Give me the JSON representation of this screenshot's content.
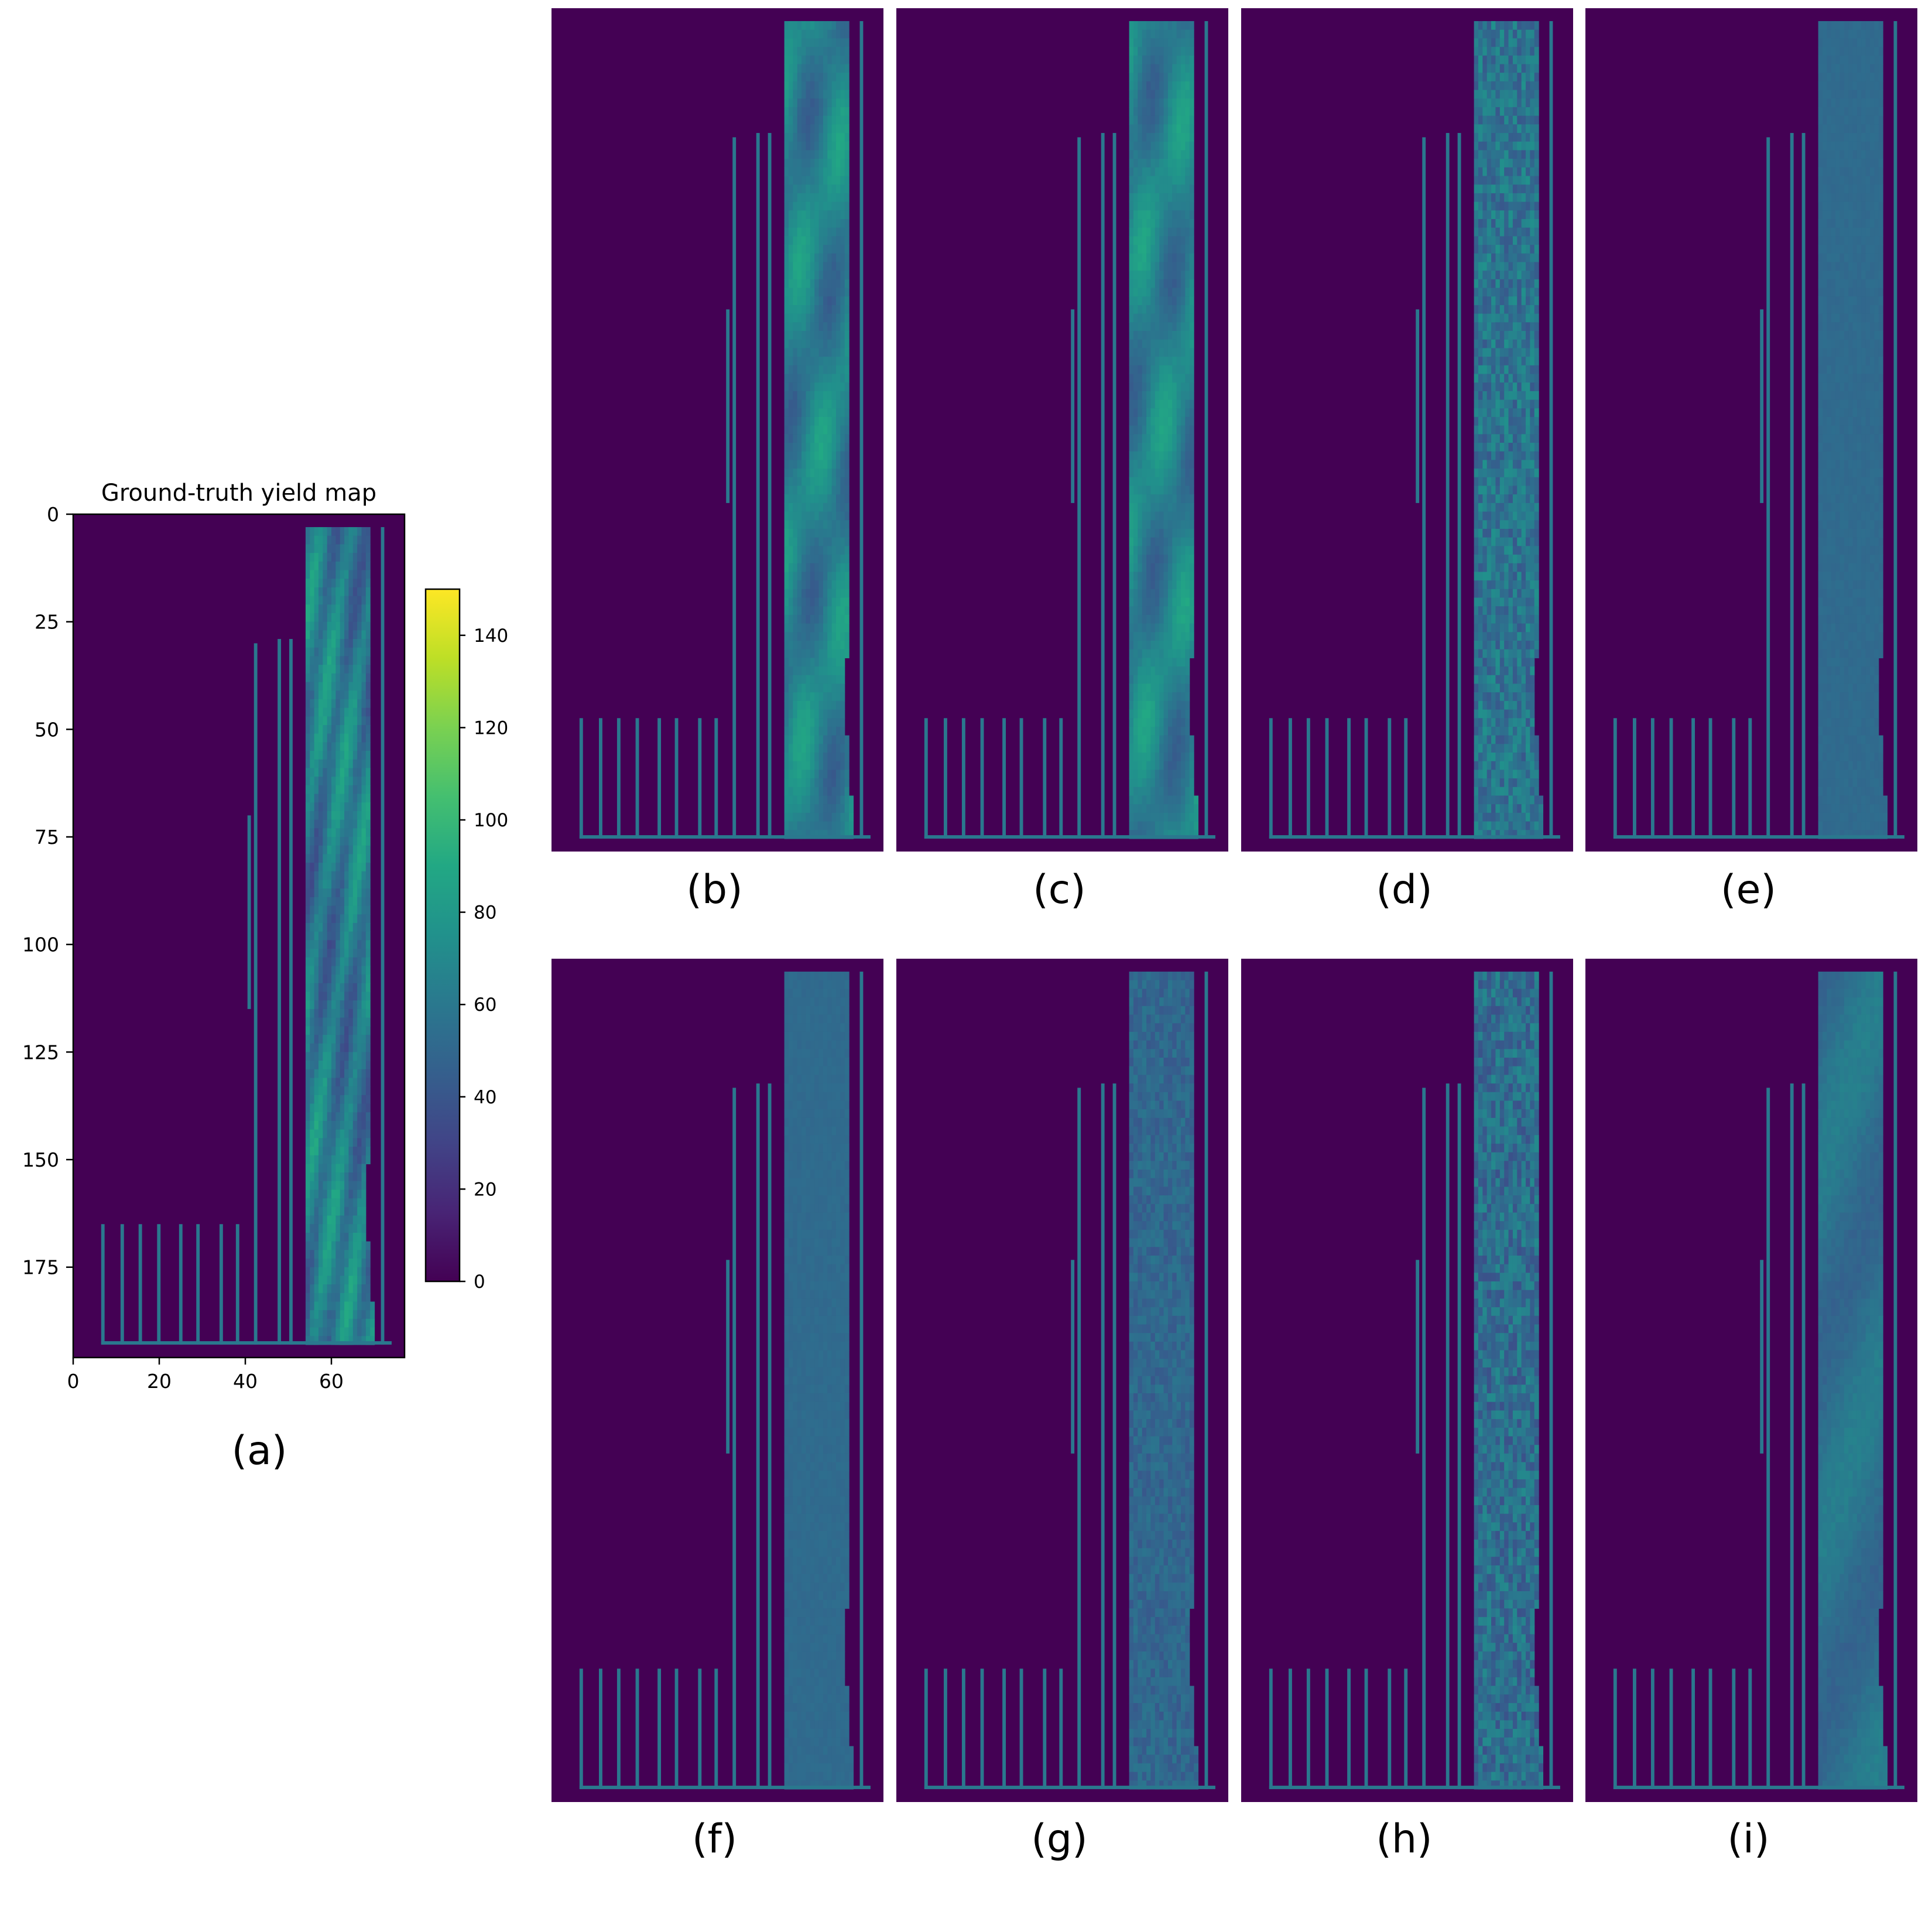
{
  "figure": {
    "panel_a": {
      "label": "(a)",
      "title": "Ground-truth yield map",
      "x_ticks": [
        "0",
        "20",
        "40",
        "60"
      ],
      "y_ticks": [
        "0",
        "25",
        "50",
        "75",
        "100",
        "125",
        "150",
        "175"
      ],
      "colorbar_ticks": [
        "0",
        "20",
        "40",
        "60",
        "80",
        "100",
        "120",
        "140"
      ]
    },
    "panels": [
      {
        "id": "b",
        "label": "(b)"
      },
      {
        "id": "c",
        "label": "(c)"
      },
      {
        "id": "d",
        "label": "(d)"
      },
      {
        "id": "e",
        "label": "(e)"
      },
      {
        "id": "f",
        "label": "(f)"
      },
      {
        "id": "g",
        "label": "(g)"
      },
      {
        "id": "h",
        "label": "(h)"
      },
      {
        "id": "i",
        "label": "(i)"
      }
    ]
  },
  "chart_data": [
    {
      "type": "heatmap",
      "title": "Ground-truth yield map",
      "xlabel": "",
      "ylabel": "",
      "grid": false,
      "colormap": "viridis",
      "xlim": [
        0,
        77
      ],
      "ylim": [
        196,
        0
      ],
      "clim": [
        0,
        150
      ],
      "x_ticks": [
        0,
        20,
        40,
        60
      ],
      "y_ticks": [
        0,
        25,
        50,
        75,
        100,
        125,
        150,
        175
      ],
      "colorbar_ticks": [
        0,
        20,
        40,
        60,
        80,
        100,
        120,
        140
      ],
      "field": {
        "col_start": 54,
        "col_end": 69,
        "row_start": 3,
        "row_end": 193,
        "typical_value": 60
      },
      "boundary_value": 60,
      "background_value": 0
    },
    {
      "type": "heatmap",
      "panel": "b",
      "colormap": "viridis",
      "field_variation": "smooth"
    },
    {
      "type": "heatmap",
      "panel": "c",
      "colormap": "viridis",
      "field_variation": "smooth"
    },
    {
      "type": "heatmap",
      "panel": "d",
      "colormap": "viridis",
      "field_variation": "noisy"
    },
    {
      "type": "heatmap",
      "panel": "e",
      "colormap": "viridis",
      "field_variation": "uniform"
    },
    {
      "type": "heatmap",
      "panel": "f",
      "colormap": "viridis",
      "field_variation": "uniform"
    },
    {
      "type": "heatmap",
      "panel": "g",
      "colormap": "viridis",
      "field_variation": "fine-noise"
    },
    {
      "type": "heatmap",
      "panel": "h",
      "colormap": "viridis",
      "field_variation": "noisy"
    },
    {
      "type": "heatmap",
      "panel": "i",
      "colormap": "viridis",
      "field_variation": "smooth-streaks"
    }
  ]
}
